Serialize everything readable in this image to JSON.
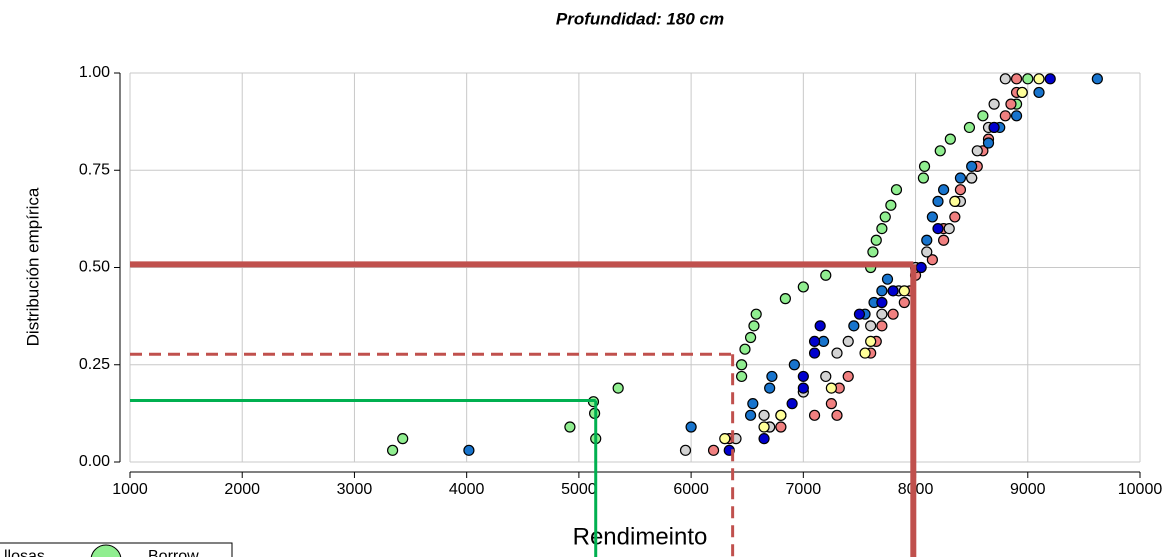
{
  "chart_data": {
    "type": "scatter",
    "title": "Profundidad: 180 cm",
    "x_label": "Rendimeinto",
    "y_label": "Distribución empírica",
    "xlim": [
      1000,
      10000
    ],
    "ylim": [
      0,
      1
    ],
    "xticks": [
      1000,
      2000,
      3000,
      4000,
      5000,
      6000,
      7000,
      8000,
      9000,
      10000
    ],
    "yticks": [
      {
        "value": 0,
        "label": "0.00"
      },
      {
        "value": 0.25,
        "label": "0.25"
      },
      {
        "value": 0.5,
        "label": "0.50"
      },
      {
        "value": 0.75,
        "label": "0.75"
      },
      {
        "value": 1,
        "label": "1.00"
      }
    ],
    "grid": true,
    "legend_partial_label": "llosas",
    "series": [
      {
        "name": "Borrow",
        "color": "#90ee90",
        "x": [
          3340,
          3430,
          4920,
          5130,
          5140,
          5150,
          5350,
          6450,
          6450,
          6480,
          6530,
          6560,
          6580,
          6840,
          7000,
          7200,
          7600,
          7620,
          7650,
          7700,
          7730,
          7780,
          7830,
          8070,
          8080,
          8220,
          8310,
          8480,
          8600,
          8900,
          8950,
          9000
        ],
        "values": [
          0.03,
          0.06,
          0.09,
          0.155,
          0.125,
          0.06,
          0.19,
          0.25,
          0.22,
          0.29,
          0.32,
          0.35,
          0.38,
          0.42,
          0.45,
          0.48,
          0.5,
          0.54,
          0.57,
          0.6,
          0.63,
          0.66,
          0.7,
          0.73,
          0.76,
          0.8,
          0.83,
          0.86,
          0.89,
          0.92,
          0.95,
          0.985
        ]
      },
      {
        "color": "#f08080",
        "x": [
          6200,
          6340,
          6700,
          6800,
          7100,
          7250,
          7300,
          7320,
          7400,
          7600,
          7650,
          7700,
          7800,
          7900,
          7950,
          8000,
          8150,
          8250,
          8250,
          8350,
          8360,
          8400,
          8500,
          8550,
          8600,
          8650,
          8800,
          8850,
          8900,
          8900
        ],
        "values": [
          0.03,
          0.06,
          0.09,
          0.09,
          0.12,
          0.15,
          0.12,
          0.19,
          0.22,
          0.28,
          0.31,
          0.35,
          0.38,
          0.41,
          0.44,
          0.48,
          0.52,
          0.57,
          0.6,
          0.63,
          0.67,
          0.7,
          0.73,
          0.76,
          0.8,
          0.83,
          0.89,
          0.92,
          0.95,
          0.985
        ]
      },
      {
        "color": "#d3d3d3",
        "x": [
          5950,
          6400,
          6650,
          6700,
          6800,
          7000,
          7200,
          7300,
          7400,
          7600,
          7700,
          7850,
          8000,
          8100,
          8300,
          8400,
          8500,
          8550,
          8650,
          8700,
          8800
        ],
        "values": [
          0.03,
          0.06,
          0.12,
          0.09,
          0.12,
          0.18,
          0.22,
          0.28,
          0.31,
          0.35,
          0.38,
          0.44,
          0.5,
          0.54,
          0.6,
          0.67,
          0.73,
          0.8,
          0.86,
          0.92,
          0.985
        ]
      },
      {
        "color": "#ffff99",
        "x": [
          6300,
          6650,
          6800,
          7250,
          7550,
          7600,
          7900,
          8350,
          8700,
          8950,
          9100
        ],
        "values": [
          0.06,
          0.09,
          0.12,
          0.19,
          0.28,
          0.31,
          0.44,
          0.67,
          0.86,
          0.95,
          0.985
        ]
      },
      {
        "color": "#1874cd",
        "x": [
          4020,
          6000,
          6530,
          6550,
          6700,
          6720,
          6920,
          7180,
          7450,
          7550,
          7630,
          7700,
          7750,
          8100,
          8150,
          8200,
          8250,
          8400,
          8500,
          8650,
          8750,
          8900,
          9100,
          9620
        ],
        "values": [
          0.03,
          0.09,
          0.12,
          0.15,
          0.19,
          0.22,
          0.25,
          0.31,
          0.35,
          0.38,
          0.41,
          0.44,
          0.47,
          0.57,
          0.63,
          0.67,
          0.7,
          0.73,
          0.76,
          0.82,
          0.86,
          0.89,
          0.95,
          0.985
        ]
      },
      {
        "color": "#0000cd",
        "x": [
          6340,
          6650,
          6900,
          7000,
          7000,
          7100,
          7100,
          7150,
          7500,
          7700,
          7800,
          8050,
          8200,
          8700,
          9200
        ],
        "values": [
          0.03,
          0.06,
          0.15,
          0.19,
          0.22,
          0.28,
          0.31,
          0.35,
          0.38,
          0.41,
          0.44,
          0.5,
          0.6,
          0.86,
          0.985
        ]
      }
    ],
    "reference_lines": [
      {
        "x": 7980,
        "y": 0.508,
        "color": "#c0504d",
        "style": "solid",
        "width": 6
      },
      {
        "x": 6370,
        "y": 0.277,
        "color": "#c0504d",
        "style": "dashed",
        "width": 3
      },
      {
        "x": 5150,
        "y": 0.158,
        "color": "#00b050",
        "style": "solid",
        "width": 3
      }
    ]
  }
}
